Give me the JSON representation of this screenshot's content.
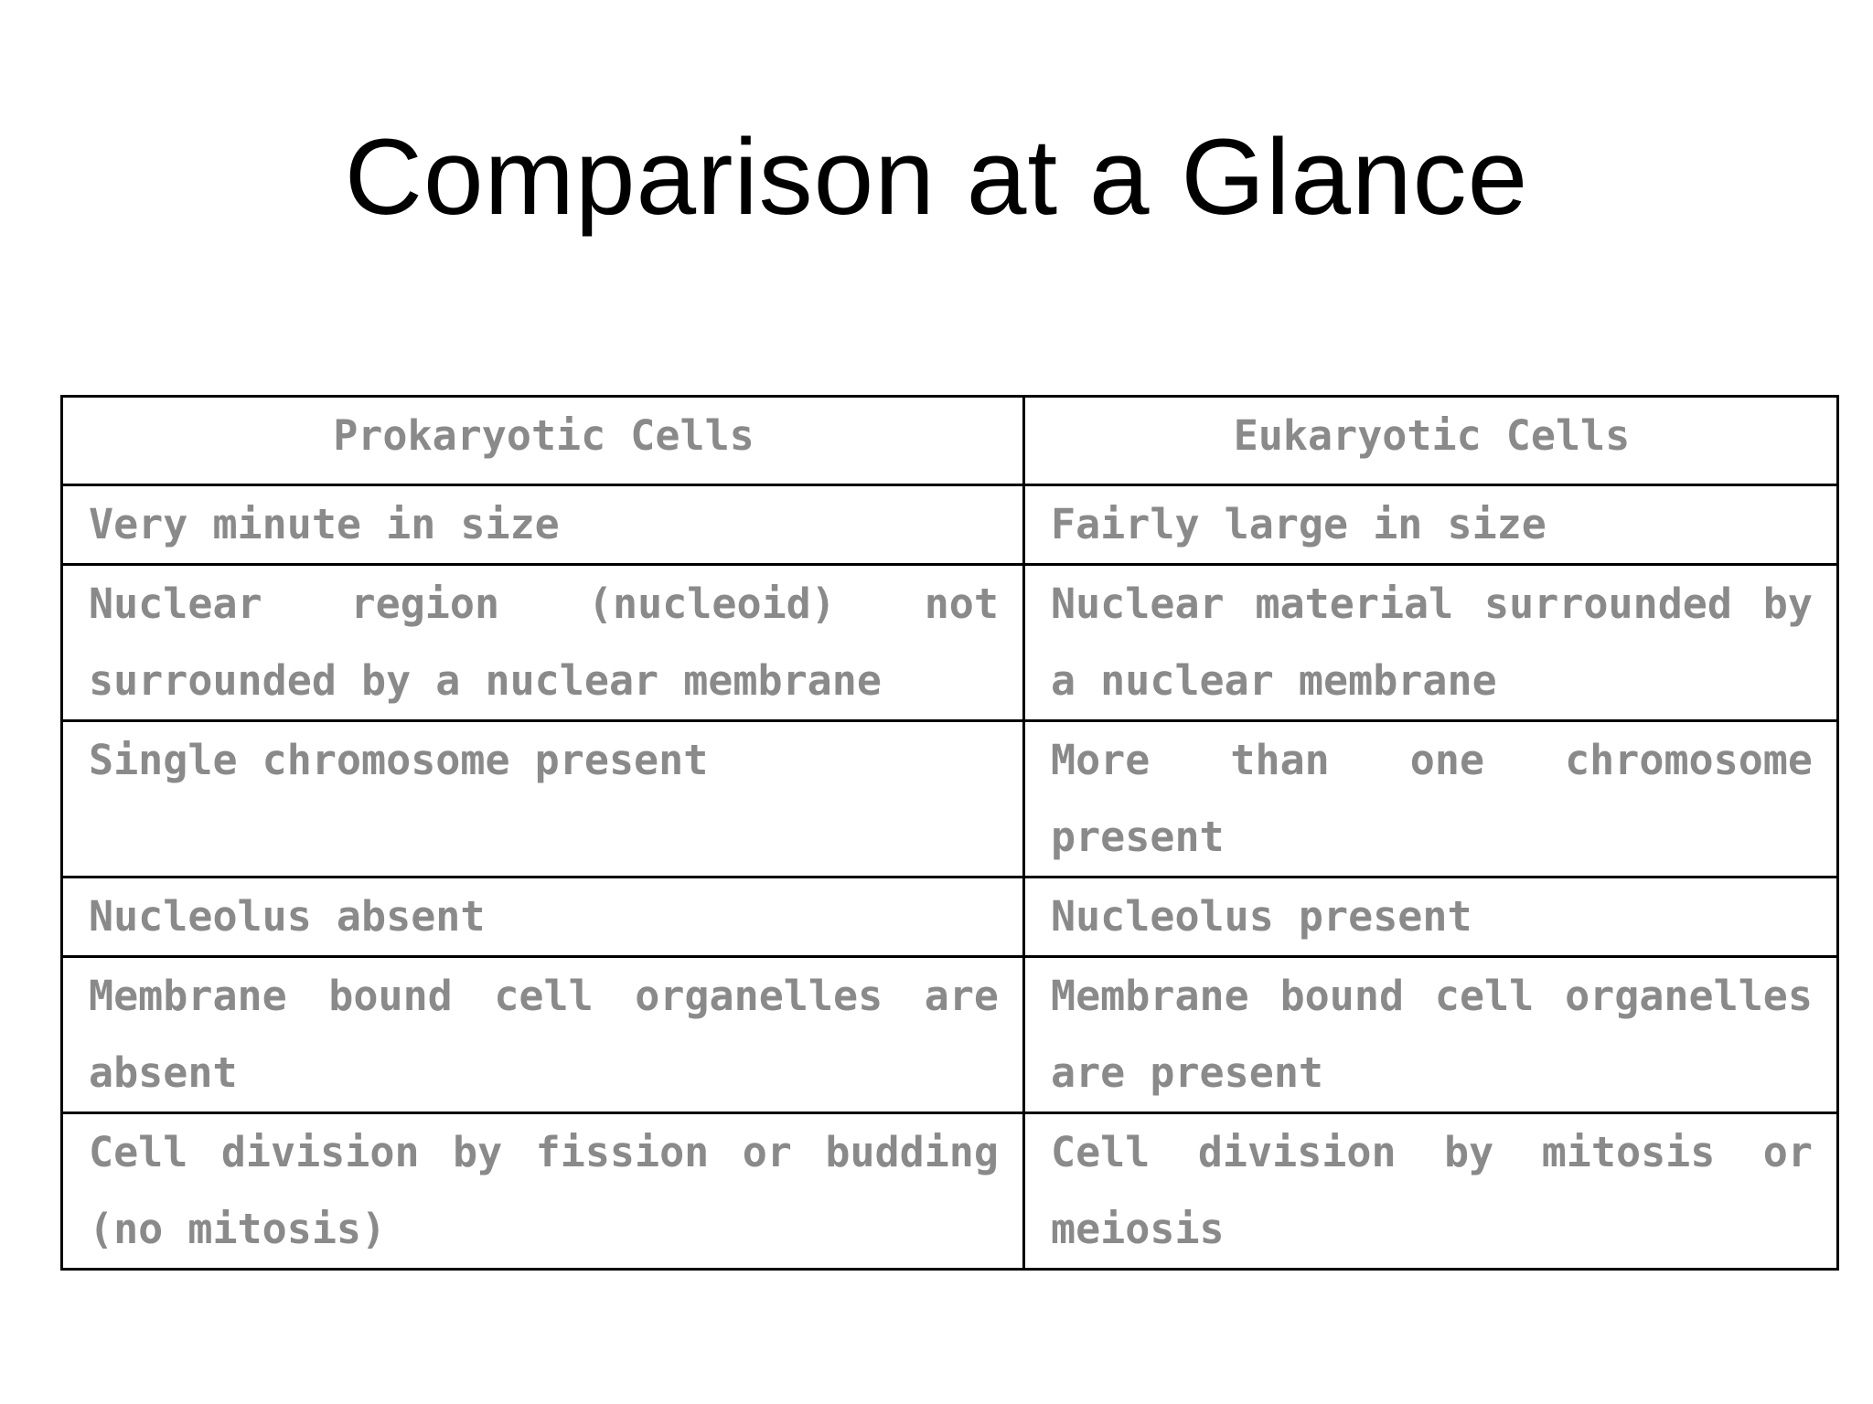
{
  "slide": {
    "title": "Comparison at a Glance"
  },
  "table": {
    "headers": [
      "Prokaryotic Cells",
      "Eukaryotic Cells"
    ],
    "rows": [
      [
        "Very minute in size",
        "Fairly large in size"
      ],
      [
        "Nuclear region (nucleoid) not surrounded by a nuclear membrane",
        "Nuclear material surrounded by a nuclear membrane"
      ],
      [
        "Single chromosome present",
        "More than one chromosome present"
      ],
      [
        "Nucleolus absent",
        "Nucleolus present"
      ],
      [
        "Membrane bound cell organelles are absent",
        "Membrane bound cell organelles are present"
      ],
      [
        "Cell division by fission or budding (no mitosis)",
        "Cell division by mitosis or meiosis"
      ]
    ]
  }
}
